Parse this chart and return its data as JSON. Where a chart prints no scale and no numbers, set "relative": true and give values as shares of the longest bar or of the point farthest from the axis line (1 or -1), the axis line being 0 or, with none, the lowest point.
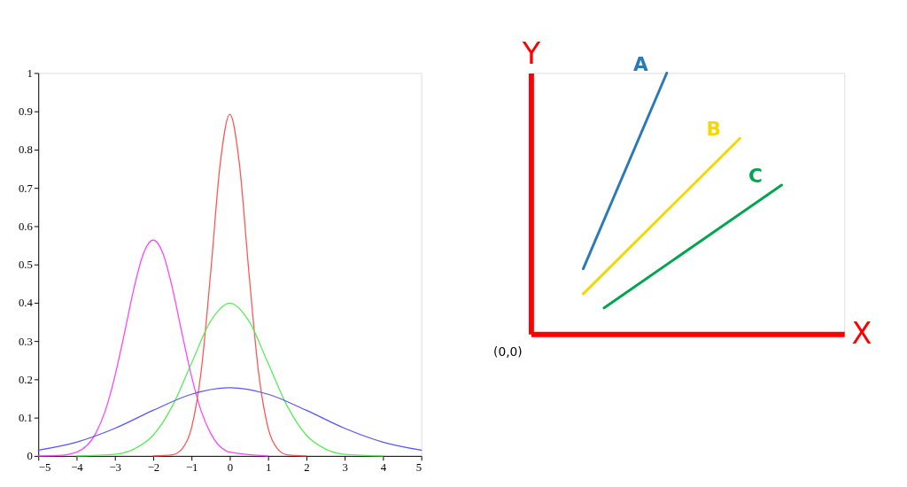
{
  "chart_data": [
    {
      "type": "line",
      "xlim": [
        -5,
        5
      ],
      "ylim": [
        0,
        1
      ],
      "xticks": [
        -5,
        -4,
        -3,
        -2,
        -1,
        0,
        1,
        2,
        3,
        4,
        5
      ],
      "yticks": [
        0,
        0.1,
        0.2,
        0.3,
        0.4,
        0.5,
        0.6,
        0.7,
        0.8,
        0.9,
        1
      ],
      "grid": false,
      "series": [
        {
          "color": "#ff44ff",
          "x": [
            -5,
            -4.5,
            -4,
            -3.5,
            -3.25,
            -3,
            -2.75,
            -2.5,
            -2.25,
            -2,
            -1.75,
            -1.5,
            -1.25,
            -1,
            -0.75,
            -0.5,
            0,
            1
          ],
          "values": [
            0,
            0.001,
            0.01,
            0.059,
            0.118,
            0.208,
            0.321,
            0.439,
            0.53,
            0.564,
            0.53,
            0.439,
            0.321,
            0.208,
            0.118,
            0.059,
            0.01,
            0
          ]
        },
        {
          "color": "#ff5555",
          "x": [
            -2,
            -1.5,
            -1.25,
            -1,
            -0.75,
            -0.5,
            -0.25,
            0,
            0.25,
            0.5,
            0.75,
            1,
            1.25,
            1.5,
            2
          ],
          "values": [
            0,
            0.003,
            0.018,
            0.073,
            0.219,
            0.478,
            0.763,
            0.892,
            0.763,
            0.478,
            0.219,
            0.073,
            0.018,
            0.003,
            0
          ]
        },
        {
          "color": "#55ee55",
          "x": [
            -4,
            -3,
            -2.5,
            -2,
            -1.5,
            -1,
            -0.5,
            0,
            0.5,
            1,
            1.5,
            2,
            2.5,
            3,
            4
          ],
          "values": [
            0,
            0.004,
            0.018,
            0.054,
            0.13,
            0.242,
            0.352,
            0.399,
            0.352,
            0.242,
            0.13,
            0.054,
            0.018,
            0.004,
            0
          ]
        },
        {
          "color": "#5555ff",
          "x": [
            -5,
            -4,
            -3,
            -2,
            -1,
            0,
            1,
            2,
            3,
            4,
            5
          ],
          "values": [
            0.015,
            0.036,
            0.072,
            0.119,
            0.161,
            0.178,
            0.161,
            0.119,
            0.072,
            0.036,
            0.015
          ]
        }
      ]
    },
    {
      "type": "line",
      "relative": true,
      "xlabel": "X",
      "ylabel": "Y",
      "tick_labels": false,
      "grid": false,
      "annotations": [
        "(0,0)"
      ],
      "categories": [
        null,
        null,
        null,
        null,
        null,
        null,
        null,
        null,
        null,
        null,
        null,
        null,
        null,
        null,
        null,
        null,
        null,
        null,
        null,
        null,
        null,
        null,
        null,
        null,
        null,
        null,
        null,
        null,
        null,
        null,
        null
      ],
      "series": [
        {
          "name": "A",
          "color": "#2a7ab8",
          "values": [
            null,
            null,
            null,
            null,
            null,
            0.25,
            null,
            null,
            null,
            null,
            null,
            null,
            null,
            1,
            null,
            null,
            null,
            null,
            null,
            null,
            null,
            null,
            null,
            null,
            null,
            null,
            null,
            null,
            null,
            null,
            null
          ]
        },
        {
          "name": "B",
          "color": "#f5d800",
          "values": [
            null,
            null,
            null,
            null,
            null,
            0.154,
            null,
            null,
            null,
            null,
            null,
            null,
            null,
            null,
            null,
            null,
            null,
            null,
            null,
            null,
            0.75,
            null,
            null,
            null,
            null,
            null,
            null,
            null,
            null,
            null,
            null
          ]
        },
        {
          "name": "C",
          "color": "#00a550",
          "values": [
            null,
            null,
            null,
            null,
            null,
            null,
            null,
            0.1,
            null,
            null,
            null,
            null,
            null,
            null,
            null,
            null,
            null,
            null,
            null,
            null,
            null,
            null,
            null,
            null,
            0.571,
            null,
            null,
            null,
            null,
            null,
            null
          ]
        }
      ]
    }
  ]
}
